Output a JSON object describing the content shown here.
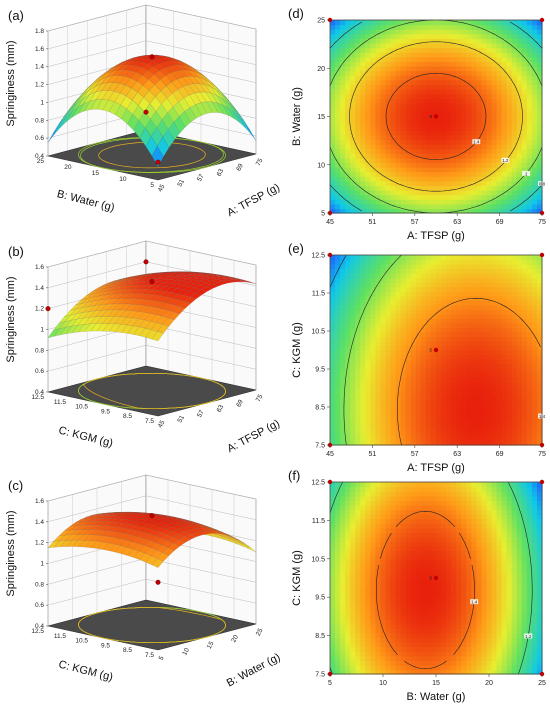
{
  "chart_data": [
    {
      "type": "surface3d",
      "panel": "(a)",
      "zlabel": "Springiness (mm)",
      "xlabel": "A: TFSP (g)",
      "ylabel": "B: Water (g)",
      "x_ticks": [
        "45",
        "51",
        "57",
        "63",
        "69",
        "75"
      ],
      "y_ticks": [
        "5",
        "10",
        "15",
        "20",
        "25"
      ],
      "z_ticks": [
        "0.4",
        "0.6",
        "0.8",
        "1",
        "1.2",
        "1.4",
        "1.6",
        "1.8"
      ],
      "x_range": [
        45,
        75
      ],
      "y_range": [
        5,
        25
      ],
      "z_range": [
        0.4,
        1.8
      ],
      "model": {
        "b0": 1.5,
        "bx": 0.0,
        "by": 0.0,
        "bxy": 0.0,
        "bxx": -0.45,
        "byy": -0.5
      },
      "design_points": [
        {
          "x": 60,
          "y": 15,
          "z": 1.5
        },
        {
          "x": 45,
          "y": 5,
          "z": 0.6
        },
        {
          "x": 75,
          "y": 25,
          "z": 0.6
        }
      ]
    },
    {
      "type": "surface3d",
      "panel": "(b)",
      "zlabel": "Springiness (mm)",
      "xlabel": "A: TFSP (g)",
      "ylabel": "C: KGM (g)",
      "x_ticks": [
        "45",
        "51",
        "57",
        "63",
        "69",
        "75"
      ],
      "y_ticks": [
        "7.5",
        "8.5",
        "9.5",
        "10.5",
        "11.5",
        "12.5"
      ],
      "z_ticks": [
        "0.4",
        "0.6",
        "0.8",
        "1",
        "1.2",
        "1.4",
        "1.6"
      ],
      "x_range": [
        45,
        75
      ],
      "y_range": [
        7.5,
        12.5
      ],
      "z_range": [
        0.4,
        1.6
      ],
      "model": {
        "b0": 1.45,
        "bx": 0.15,
        "by": -0.1,
        "bxy": 0.0,
        "bxx": -0.2,
        "byy": -0.08
      },
      "design_points": [
        {
          "x": 60,
          "y": 10,
          "z": 1.45
        },
        {
          "x": 75,
          "y": 12.5,
          "z": 1.4
        },
        {
          "x": 45,
          "y": 12.5,
          "z": 1.2
        }
      ]
    },
    {
      "type": "surface3d",
      "panel": "(c)",
      "zlabel": "Springiness (mm)",
      "xlabel": "B: Water (g)",
      "ylabel": "C: KGM (g)",
      "x_ticks": [
        "5",
        "10",
        "15",
        "20",
        "25"
      ],
      "y_ticks": [
        "7.5",
        "8.5",
        "9.5",
        "10.5",
        "11.5",
        "12.5"
      ],
      "z_ticks": [
        "0.4",
        "0.6",
        "0.8",
        "1",
        "1.2",
        "1.4",
        "1.6"
      ],
      "x_range": [
        5,
        25
      ],
      "y_range": [
        7.5,
        12.5
      ],
      "z_range": [
        0.4,
        1.6
      ],
      "model": {
        "b0": 1.45,
        "bx": -0.05,
        "by": -0.02,
        "bxy": 0.0,
        "bxx": -0.25,
        "byy": -0.08
      },
      "design_points": [
        {
          "x": 15,
          "y": 10,
          "z": 1.45
        },
        {
          "x": 5,
          "y": 7.5,
          "z": 1.05
        }
      ]
    },
    {
      "type": "contour",
      "panel": "(d)",
      "xlabel": "A: TFSP (g)",
      "ylabel": "B: Water (g)",
      "x_ticks": [
        "45",
        "51",
        "57",
        "63",
        "69",
        "75"
      ],
      "y_ticks": [
        "5",
        "10",
        "15",
        "20",
        "25"
      ],
      "x_range": [
        45,
        75
      ],
      "y_range": [
        5,
        25
      ],
      "model": {
        "b0": 1.5,
        "bx": 0.0,
        "by": 0.0,
        "bxy": 0.0,
        "bxx": -0.45,
        "byy": -0.5
      },
      "contour_levels": [
        0.8,
        1.0,
        1.2,
        1.4
      ],
      "contour_labels": [
        "0.8",
        "1",
        "1.2",
        "1.4"
      ],
      "center_label": "5",
      "design_points": [
        {
          "x": 45,
          "y": 5
        },
        {
          "x": 75,
          "y": 5
        },
        {
          "x": 45,
          "y": 25
        },
        {
          "x": 75,
          "y": 25
        },
        {
          "x": 60,
          "y": 15
        }
      ]
    },
    {
      "type": "contour",
      "panel": "(e)",
      "xlabel": "A: TFSP (g)",
      "ylabel": "C: KGM (g)",
      "x_ticks": [
        "45",
        "51",
        "57",
        "63",
        "69",
        "75"
      ],
      "y_ticks": [
        "7.5",
        "8.5",
        "9.5",
        "10.5",
        "11.5",
        "12.5"
      ],
      "x_range": [
        45,
        75
      ],
      "y_range": [
        7.5,
        12.5
      ],
      "model": {
        "b0": 1.45,
        "bx": 0.15,
        "by": -0.1,
        "bxy": 0.0,
        "bxx": -0.2,
        "byy": -0.08
      },
      "contour_levels": [
        0.8,
        1.0,
        1.2,
        1.4
      ],
      "contour_labels": [
        "0.8",
        "1",
        "1.2",
        "1.4"
      ],
      "center_label": "5",
      "design_points": [
        {
          "x": 45,
          "y": 7.5
        },
        {
          "x": 75,
          "y": 7.5
        },
        {
          "x": 45,
          "y": 12.5
        },
        {
          "x": 75,
          "y": 12.5
        },
        {
          "x": 60,
          "y": 10
        }
      ]
    },
    {
      "type": "contour",
      "panel": "(f)",
      "xlabel": "B: Water (g)",
      "ylabel": "C: KGM (g)",
      "x_ticks": [
        "5",
        "10",
        "15",
        "20",
        "25"
      ],
      "y_ticks": [
        "7.5",
        "8.5",
        "9.5",
        "10.5",
        "11.5",
        "12.5"
      ],
      "x_range": [
        5,
        25
      ],
      "y_range": [
        7.5,
        12.5
      ],
      "model": {
        "b0": 1.45,
        "bx": -0.05,
        "by": -0.02,
        "bxy": 0.0,
        "bxx": -0.25,
        "byy": -0.08
      },
      "contour_levels": [
        1.0,
        1.2,
        1.4
      ],
      "contour_labels": [
        "1",
        "1.2",
        "1.4"
      ],
      "center_label": "5",
      "design_points": [
        {
          "x": 5,
          "y": 7.5
        },
        {
          "x": 25,
          "y": 7.5
        },
        {
          "x": 5,
          "y": 12.5
        },
        {
          "x": 25,
          "y": 12.5
        },
        {
          "x": 15,
          "y": 10
        }
      ]
    }
  ],
  "colors": {
    "surface_low": "#00b4ff",
    "surface_mid": "#7ee05a",
    "surface_high": "#e03010",
    "design_point": "#c00000",
    "floor": "#4a4a4a"
  }
}
